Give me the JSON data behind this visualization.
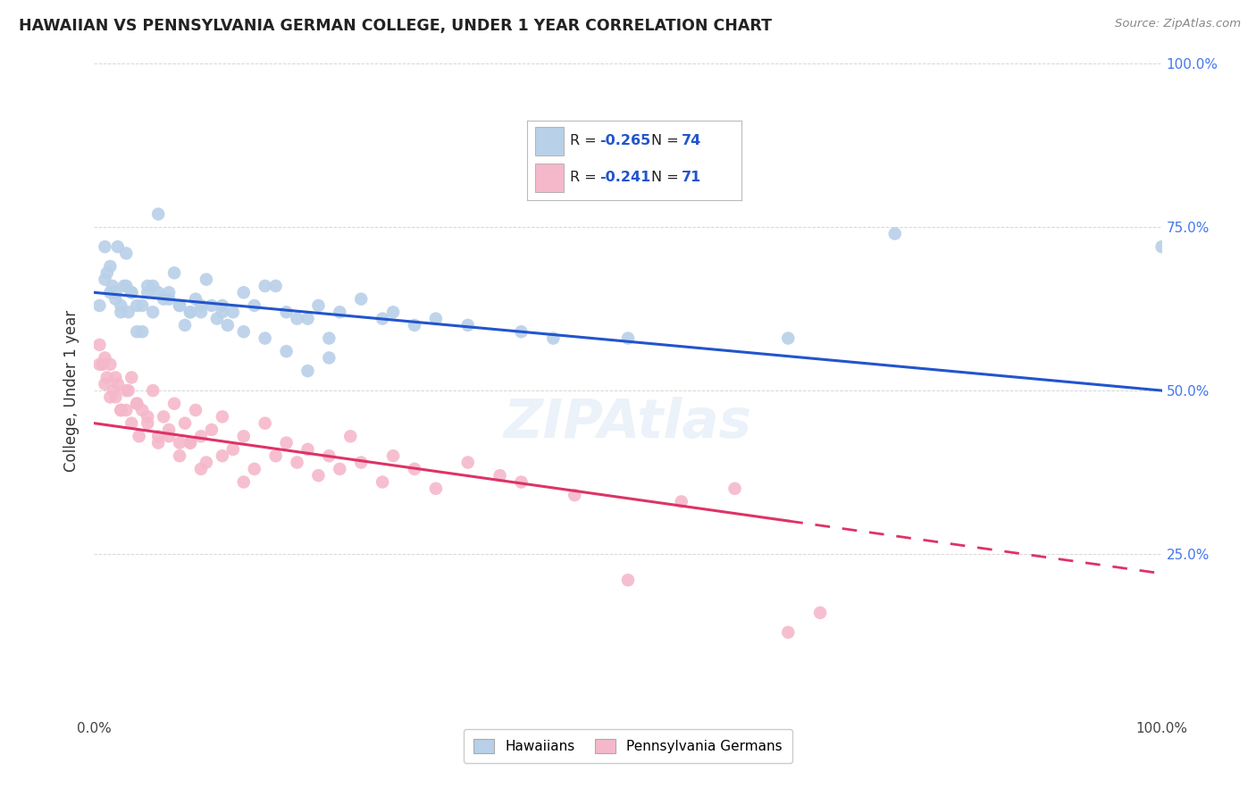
{
  "title": "HAWAIIAN VS PENNSYLVANIA GERMAN COLLEGE, UNDER 1 YEAR CORRELATION CHART",
  "source": "Source: ZipAtlas.com",
  "ylabel": "College, Under 1 year",
  "legend_label1": "Hawaiians",
  "legend_label2": "Pennsylvania Germans",
  "r1": -0.265,
  "n1": 74,
  "r2": -0.241,
  "n2": 71,
  "blue_color": "#b8d0e8",
  "pink_color": "#f5b8cb",
  "blue_line_color": "#2255cc",
  "pink_line_color": "#dd3366",
  "background_color": "#ffffff",
  "grid_color": "#cccccc",
  "ytick_color": "#4477ee",
  "blue_x": [
    0.5,
    1.0,
    1.2,
    1.5,
    1.7,
    2.0,
    2.2,
    2.5,
    2.8,
    3.0,
    3.2,
    3.5,
    4.0,
    4.5,
    5.0,
    5.5,
    6.0,
    6.5,
    7.0,
    7.5,
    8.0,
    8.5,
    9.0,
    9.5,
    10.0,
    10.5,
    11.0,
    11.5,
    12.0,
    12.5,
    13.0,
    14.0,
    15.0,
    16.0,
    17.0,
    18.0,
    19.0,
    20.0,
    21.0,
    22.0,
    23.0,
    25.0,
    27.0,
    28.0,
    30.0,
    32.0,
    35.0,
    40.0,
    43.0,
    50.0,
    65.0,
    75.0,
    1.0,
    1.5,
    2.0,
    2.5,
    3.0,
    3.5,
    4.0,
    4.5,
    5.0,
    5.5,
    6.0,
    7.0,
    8.0,
    9.0,
    10.0,
    12.0,
    14.0,
    16.0,
    18.0,
    20.0,
    22.0,
    100.0
  ],
  "blue_y": [
    63,
    67,
    68,
    65,
    66,
    64,
    72,
    63,
    66,
    71,
    62,
    65,
    63,
    63,
    65,
    66,
    65,
    64,
    64,
    68,
    63,
    60,
    62,
    64,
    63,
    67,
    63,
    61,
    63,
    60,
    62,
    65,
    63,
    66,
    66,
    62,
    61,
    61,
    63,
    58,
    62,
    64,
    61,
    62,
    60,
    61,
    60,
    59,
    58,
    58,
    58,
    74,
    72,
    69,
    65,
    62,
    66,
    65,
    59,
    59,
    66,
    62,
    77,
    65,
    63,
    62,
    62,
    62,
    59,
    58,
    56,
    53,
    55,
    72
  ],
  "pink_x": [
    0.5,
    0.8,
    1.0,
    1.2,
    1.5,
    1.8,
    2.0,
    2.2,
    2.5,
    3.0,
    3.2,
    3.5,
    4.0,
    4.2,
    4.5,
    5.0,
    5.5,
    6.0,
    6.5,
    7.0,
    7.5,
    8.0,
    8.5,
    9.0,
    9.5,
    10.0,
    10.5,
    11.0,
    12.0,
    13.0,
    14.0,
    15.0,
    16.0,
    17.0,
    18.0,
    19.0,
    20.0,
    21.0,
    22.0,
    23.0,
    24.0,
    25.0,
    27.0,
    28.0,
    30.0,
    32.0,
    35.0,
    38.0,
    40.0,
    45.0,
    50.0,
    55.0,
    60.0,
    65.0,
    0.5,
    1.0,
    1.5,
    2.0,
    2.5,
    3.0,
    3.5,
    4.0,
    5.0,
    6.0,
    7.0,
    8.0,
    9.0,
    10.0,
    12.0,
    14.0,
    68.0
  ],
  "pink_y": [
    57,
    54,
    55,
    52,
    54,
    50,
    49,
    51,
    47,
    47,
    50,
    52,
    48,
    43,
    47,
    45,
    50,
    43,
    46,
    44,
    48,
    42,
    45,
    42,
    47,
    43,
    39,
    44,
    46,
    41,
    43,
    38,
    45,
    40,
    42,
    39,
    41,
    37,
    40,
    38,
    43,
    39,
    36,
    40,
    38,
    35,
    39,
    37,
    36,
    34,
    21,
    33,
    35,
    13,
    54,
    51,
    49,
    52,
    47,
    50,
    45,
    48,
    46,
    42,
    43,
    40,
    42,
    38,
    40,
    36,
    16
  ],
  "xlim": [
    0,
    100
  ],
  "ylim": [
    0,
    100
  ],
  "yticks": [
    25,
    50,
    75,
    100
  ],
  "ytick_labels": [
    "25.0%",
    "50.0%",
    "75.0%",
    "100.0%"
  ],
  "xticks": [
    0,
    25,
    50,
    75,
    100
  ],
  "xtick_labels_show": [
    "0.0%",
    "",
    "",
    "",
    "100.0%"
  ],
  "blue_trend_x0": 0,
  "blue_trend_y0": 65,
  "blue_trend_x1": 100,
  "blue_trend_y1": 50,
  "pink_trend_x0": 0,
  "pink_trend_y0": 45,
  "pink_trend_x1": 100,
  "pink_trend_y1": 22,
  "pink_solid_end": 65
}
